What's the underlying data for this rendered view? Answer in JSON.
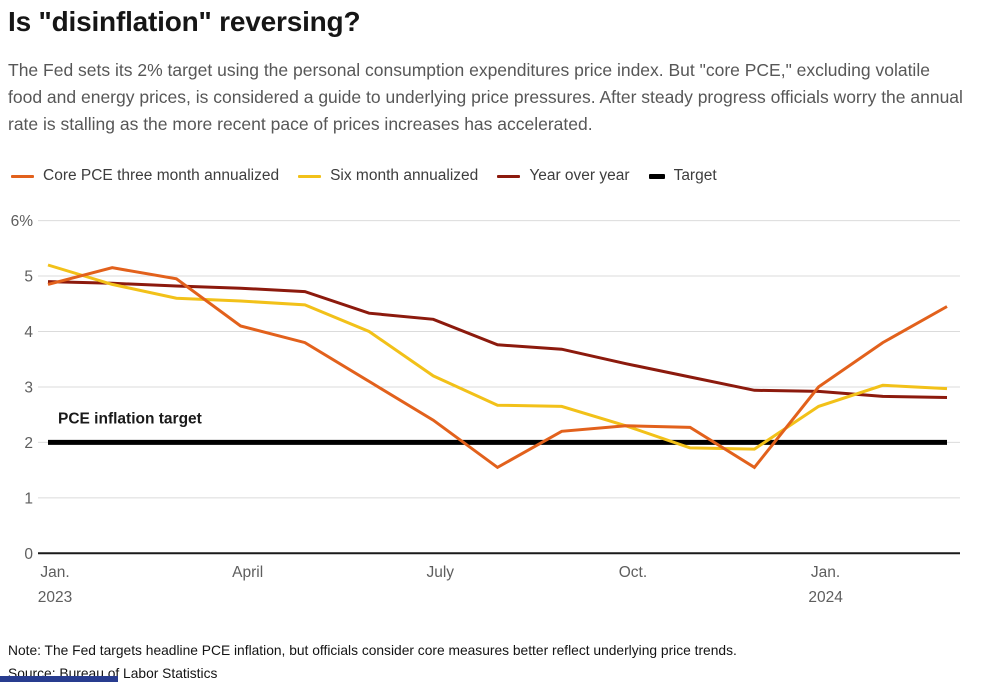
{
  "header": {
    "title": "Is \"disinflation\" reversing?",
    "subtitle": "The Fed sets its 2% target using the personal consumption expenditures price index. But \"core PCE,\" excluding volatile food and energy prices, is considered a guide to underlying price pressures. After steady progress officials worry the annual rate is stalling as the more recent pace of prices increases has accelerated."
  },
  "chart_data": {
    "type": "line",
    "x": [
      "Jan 2023",
      "Feb 2023",
      "Mar 2023",
      "Apr 2023",
      "May 2023",
      "Jun 2023",
      "Jul 2023",
      "Aug 2023",
      "Sep 2023",
      "Oct 2023",
      "Nov 2023",
      "Dec 2023",
      "Jan 2024",
      "Feb 2024",
      "Mar 2024"
    ],
    "series": [
      {
        "id": "core-pce-3m",
        "name": "Core PCE three month annualized",
        "color": "#E2611C",
        "width": 3,
        "values": [
          4.85,
          5.15,
          4.95,
          4.1,
          3.8,
          3.1,
          2.4,
          1.55,
          2.2,
          2.3,
          2.27,
          1.55,
          3.0,
          3.8,
          4.45
        ]
      },
      {
        "id": "six-month",
        "name": "Six month annualized",
        "color": "#F2C119",
        "width": 3,
        "values": [
          5.2,
          4.85,
          4.6,
          4.55,
          4.48,
          4.0,
          3.2,
          2.67,
          2.65,
          2.3,
          1.9,
          1.88,
          2.65,
          3.03,
          2.97
        ]
      },
      {
        "id": "year-over-year",
        "name": "Year over year",
        "color": "#8C1A0D",
        "width": 3,
        "values": [
          4.9,
          4.87,
          4.82,
          4.78,
          4.72,
          4.33,
          4.22,
          3.76,
          3.68,
          3.42,
          3.18,
          2.94,
          2.92,
          2.83,
          2.81
        ]
      },
      {
        "id": "target",
        "name": "Target",
        "color": "#000000",
        "width": 5,
        "values": [
          2,
          2,
          2,
          2,
          2,
          2,
          2,
          2,
          2,
          2,
          2,
          2,
          2,
          2,
          2
        ]
      }
    ],
    "ylim": [
      0,
      6
    ],
    "y_ticks": [
      {
        "value": 6,
        "label": "6%"
      },
      {
        "value": 5,
        "label": "5"
      },
      {
        "value": 4,
        "label": "4"
      },
      {
        "value": 3,
        "label": "3"
      },
      {
        "value": 2,
        "label": "2"
      },
      {
        "value": 1,
        "label": "1"
      },
      {
        "value": 0,
        "label": "0"
      }
    ],
    "x_ticks": [
      {
        "index": 0,
        "lines": [
          "Jan.",
          "2023"
        ]
      },
      {
        "index": 3,
        "lines": [
          "April"
        ]
      },
      {
        "index": 6,
        "lines": [
          "July"
        ]
      },
      {
        "index": 9,
        "lines": [
          "Oct."
        ]
      },
      {
        "index": 12,
        "lines": [
          "Jan.",
          "2024"
        ]
      }
    ],
    "annotation": {
      "text": "PCE inflation target"
    },
    "grid": true,
    "legend_position": "top"
  },
  "footer": {
    "note": "Note: The Fed targets headline PCE inflation, but officials consider core measures better reflect underlying price trends.",
    "source": "Source: Bureau of Labor Statistics",
    "accent_bar_color": "#283C8F"
  }
}
